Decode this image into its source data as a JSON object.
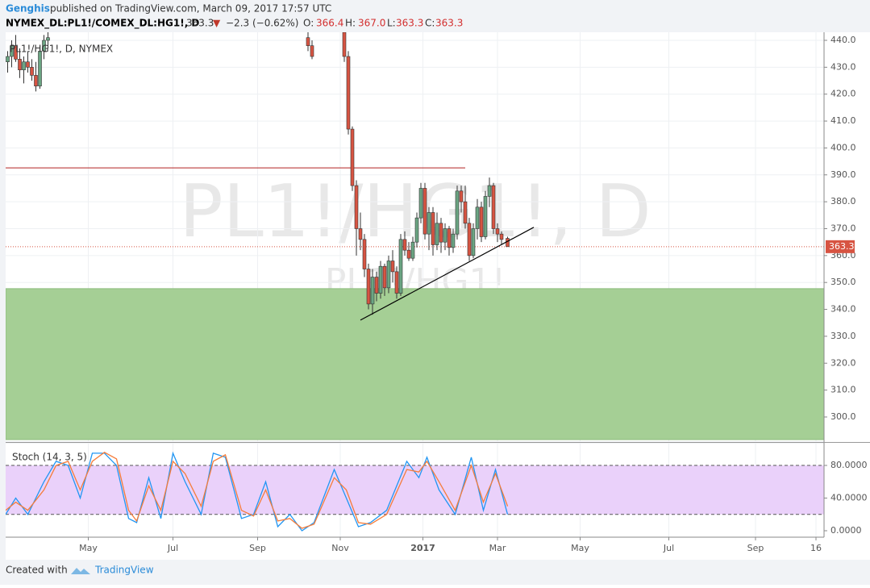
{
  "header": {
    "author": "Genghis",
    "published": "published on TradingView.com, March 09, 2017 17:57 UTC",
    "symbol": "NYMEX_DL:PL1!/COMEX_DL:HG1!, D",
    "last": "363.3",
    "arrow": "▼",
    "change": "−2.3 (−0.62%)",
    "o_label": "O:",
    "o": "366.4",
    "h_label": "H:",
    "h": "367.0",
    "l_label": "L:",
    "l": "363.3",
    "c_label": "C:",
    "c": "363.3"
  },
  "chart_data": {
    "type": "candlestick",
    "legend": "PL1!/HG1!, D, NYMEX",
    "watermark": "PL1!/HG1!, D",
    "watermark_small": "PL1!/HG1!",
    "up_color": "#6ba583",
    "down_color": "#d75442",
    "xlim": [
      0,
      406
    ],
    "xticks": [
      {
        "value": 41,
        "label": "May"
      },
      {
        "value": 83,
        "label": "Jul"
      },
      {
        "value": 125,
        "label": "Sep"
      },
      {
        "value": 166,
        "label": "Nov"
      },
      {
        "value": 207,
        "label": "2017"
      },
      {
        "value": 244,
        "label": "Mar"
      },
      {
        "value": 285,
        "label": "May"
      },
      {
        "value": 329,
        "label": "Jul"
      },
      {
        "value": 372,
        "label": "Sep"
      },
      {
        "value": 402,
        "label": "16"
      }
    ],
    "ylim": [
      291,
      443
    ],
    "yticks": [
      {
        "value": 300,
        "label": "300.0"
      },
      {
        "value": 310,
        "label": "310.0"
      },
      {
        "value": 320,
        "label": "320.0"
      },
      {
        "value": 330,
        "label": "330.0"
      },
      {
        "value": 340,
        "label": "340.0"
      },
      {
        "value": 350,
        "label": "350.0"
      },
      {
        "value": 360,
        "label": "360.0"
      },
      {
        "value": 370,
        "label": "370.0"
      },
      {
        "value": 380,
        "label": "380.0"
      },
      {
        "value": 390,
        "label": "390.0"
      },
      {
        "value": 400,
        "label": "400.0"
      },
      {
        "value": 410,
        "label": "410.0"
      },
      {
        "value": 420,
        "label": "420.0"
      },
      {
        "value": 430,
        "label": "430.0"
      },
      {
        "value": 440,
        "label": "440.0"
      }
    ],
    "x": [
      1,
      3,
      5,
      7,
      9,
      11,
      13,
      15,
      17,
      19,
      21,
      150,
      152,
      168,
      170,
      172,
      174,
      176,
      178,
      180,
      182,
      184,
      186,
      188,
      190,
      192,
      194,
      196,
      198,
      200,
      202,
      204,
      206,
      208,
      210,
      212,
      214,
      216,
      218,
      220,
      222,
      224,
      226,
      228,
      230,
      232,
      234,
      236,
      238,
      240,
      242,
      244,
      246,
      249
    ],
    "open": [
      432,
      434,
      438,
      433,
      429,
      432,
      430,
      427,
      423,
      436,
      440,
      441,
      438,
      443,
      434,
      407,
      386,
      370,
      366,
      355,
      342,
      352,
      346,
      356,
      348,
      358,
      354,
      346,
      366,
      362,
      359,
      365,
      374,
      385,
      368,
      376,
      364,
      372,
      365,
      370,
      363,
      368,
      384,
      380,
      372,
      360,
      370,
      378,
      367,
      382,
      386,
      370,
      368,
      366.4
    ],
    "high": [
      436,
      440,
      442,
      437,
      434,
      436,
      433,
      432,
      438,
      442,
      443,
      443,
      440,
      443,
      436,
      408,
      388,
      376,
      368,
      357,
      355,
      354,
      358,
      357,
      360,
      362,
      356,
      368,
      369,
      365,
      367,
      376,
      387,
      387,
      378,
      378,
      376,
      374,
      372,
      371,
      370,
      386,
      386,
      386,
      374,
      372,
      381,
      380,
      384,
      389,
      387,
      372,
      369,
      367.0
    ],
    "low": [
      428,
      430,
      432,
      426,
      424,
      428,
      425,
      421,
      422,
      433,
      437,
      436,
      433,
      432,
      405,
      384,
      360,
      362,
      352,
      340,
      338,
      343,
      344,
      345,
      346,
      350,
      344,
      345,
      360,
      358,
      358,
      363,
      372,
      366,
      362,
      360,
      362,
      361,
      362,
      360,
      361,
      366,
      376,
      370,
      358,
      359,
      366,
      365,
      366,
      378,
      368,
      365,
      364,
      363.3
    ],
    "close": [
      434,
      438,
      433,
      429,
      432,
      430,
      427,
      423,
      436,
      440,
      441,
      438,
      434,
      434,
      407,
      386,
      370,
      366,
      355,
      342,
      352,
      346,
      356,
      348,
      358,
      354,
      346,
      366,
      362,
      359,
      365,
      374,
      385,
      368,
      376,
      364,
      372,
      365,
      370,
      363,
      368,
      384,
      380,
      372,
      360,
      370,
      378,
      367,
      382,
      386,
      370,
      368,
      366,
      363.3
    ],
    "resistance": {
      "value": 392.6,
      "x": [
        0,
        228
      ],
      "color": "#b22222"
    },
    "trendline": {
      "x": [
        176,
        262
      ],
      "y": [
        336,
        370.5
      ],
      "color": "#000000"
    },
    "zone": {
      "ylim": [
        291.6,
        347.7
      ],
      "color": "#a5cf95"
    },
    "last_price": {
      "value": 363.3,
      "label": "363.3",
      "color": "#d75442"
    },
    "stoch": {
      "type": "line",
      "legend": "Stoch (14, 3, 5)",
      "ylim": [
        -7.9,
        106.7
      ],
      "yticks": [
        {
          "value": 0,
          "label": "0.0000"
        },
        {
          "value": 40,
          "label": "40.0000"
        },
        {
          "value": 80,
          "label": "80.0000"
        }
      ],
      "bands": [
        20,
        80
      ],
      "x": [
        0,
        5,
        11,
        19,
        25,
        31,
        37,
        43,
        49,
        55,
        61,
        65,
        71,
        77,
        83,
        89,
        97,
        103,
        109,
        117,
        123,
        129,
        135,
        141,
        147,
        153,
        163,
        169,
        175,
        181,
        189,
        199,
        205,
        209,
        215,
        223,
        231,
        237,
        243,
        249
      ],
      "series": [
        {
          "color": "#2196f3",
          "values": [
            20,
            40,
            20,
            60,
            85,
            80,
            40,
            95,
            95,
            80,
            15,
            10,
            65,
            15,
            95,
            60,
            20,
            95,
            90,
            15,
            20,
            60,
            5,
            20,
            0,
            10,
            75,
            40,
            5,
            10,
            25,
            85,
            65,
            90,
            50,
            20,
            90,
            25,
            75,
            20
          ]
        },
        {
          "color": "#f57c3a",
          "values": [
            25,
            35,
            25,
            50,
            80,
            85,
            50,
            85,
            96,
            88,
            25,
            12,
            55,
            25,
            85,
            70,
            30,
            85,
            93,
            25,
            18,
            50,
            12,
            15,
            3,
            8,
            65,
            50,
            10,
            8,
            20,
            75,
            72,
            85,
            60,
            25,
            80,
            35,
            70,
            30
          ]
        }
      ]
    }
  },
  "footer": {
    "created": "Created with",
    "brand": "TradingView"
  }
}
